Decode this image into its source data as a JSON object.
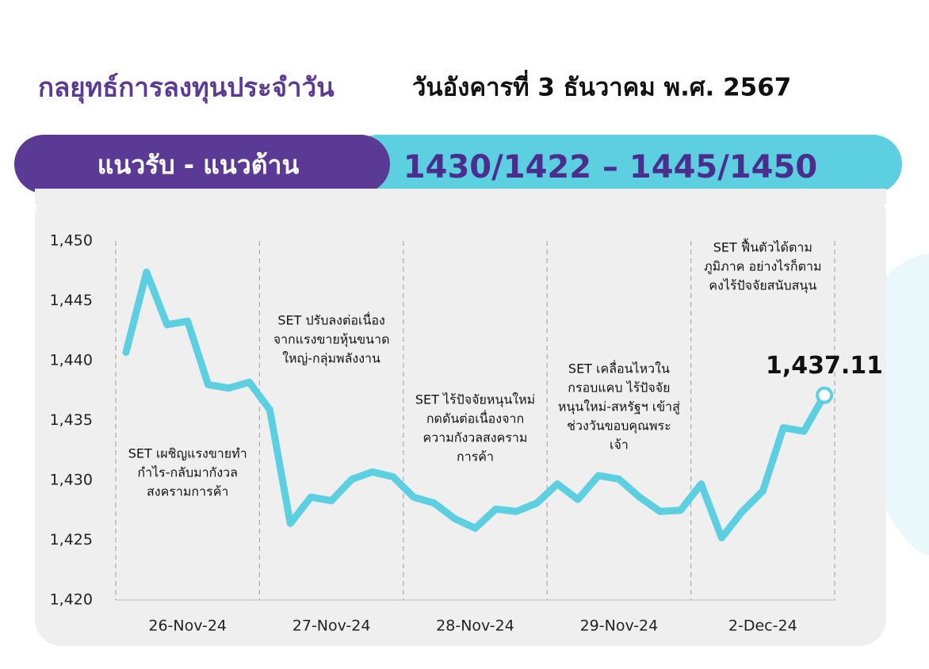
{
  "header": {
    "title": "กลยุทธ์การลงทุนประจำวัน",
    "date": "วันอังคารที่ 3 ธันวาคม พ.ศ. 2567"
  },
  "banner": {
    "label": "แนวรับ - แนวต้าน",
    "range": "1430/1422 – 1445/1450"
  },
  "chart_data": {
    "type": "line",
    "values": [
      1440.7,
      1447.4,
      1443.0,
      1443.3,
      1438.0,
      1437.7,
      1438.2,
      1435.9,
      1426.4,
      1428.6,
      1428.3,
      1430.1,
      1430.7,
      1430.3,
      1428.6,
      1428.1,
      1426.8,
      1426.0,
      1427.6,
      1427.4,
      1428.1,
      1429.7,
      1428.4,
      1430.4,
      1430.1,
      1428.6,
      1427.4,
      1427.5,
      1429.7,
      1425.2,
      1427.4,
      1429.1,
      1434.4,
      1434.1,
      1437.11
    ],
    "value_labels": [
      null,
      null,
      null,
      null,
      null,
      null,
      null,
      null,
      null,
      null,
      null,
      null,
      null,
      null,
      null,
      null,
      null,
      null,
      null,
      null,
      null,
      null,
      null,
      null,
      null,
      null,
      null,
      null,
      null,
      null,
      null,
      null,
      null,
      null,
      "1,437.11"
    ],
    "color": "#5ccfe0",
    "xlim": [
      -0.5,
      34.5
    ],
    "xticks": [
      {
        "value": 3,
        "label": "26-Nov-24"
      },
      {
        "value": 10,
        "label": "27-Nov-24"
      },
      {
        "value": 17,
        "label": "28-Nov-24"
      },
      {
        "value": 24,
        "label": "29-Nov-24"
      },
      {
        "value": 31,
        "label": "2-Dec-24"
      }
    ],
    "ylim": [
      1420,
      1450
    ],
    "yticks": [
      {
        "value": 1420,
        "label": "1,420"
      },
      {
        "value": 1425,
        "label": "1,425"
      },
      {
        "value": 1430,
        "label": "1,430"
      },
      {
        "value": 1435,
        "label": "1,435"
      },
      {
        "value": 1440,
        "label": "1,440"
      },
      {
        "value": 1445,
        "label": "1,445"
      },
      {
        "value": 1450,
        "label": "1,450"
      }
    ],
    "annotations": [
      {
        "lines": [
          "SET เผชิญแรงขายทำ",
          "กำไร-กลับมากังวล",
          "สงครามการค้า"
        ]
      },
      {
        "lines": [
          "SET ปรับลงต่อเนื่อง",
          "จากแรงขายหุ้นขนาด",
          "ใหญ่-กลุ่มพลังงาน"
        ]
      },
      {
        "lines": [
          "SET ไร้ปัจจัยหนุนใหม่",
          "กดดันต่อเนื่องจาก",
          "ความกังวลสงคราม",
          "การค้า"
        ]
      },
      {
        "lines": [
          "SET เคลื่อนไหวใน",
          "กรอบแคบ ไร้ปัจจัย",
          "หนุนใหม่-สหรัฐฯ เข้าสู่",
          "ช่วงวันขอบคุณพระ",
          "เจ้า"
        ]
      },
      {
        "lines": [
          "SET ฟื้นตัวได้ตาม",
          "ภูมิภาค อย่างไรก็ตาม",
          "คงไร้ปัจจัยสนับสนุน"
        ]
      }
    ]
  }
}
